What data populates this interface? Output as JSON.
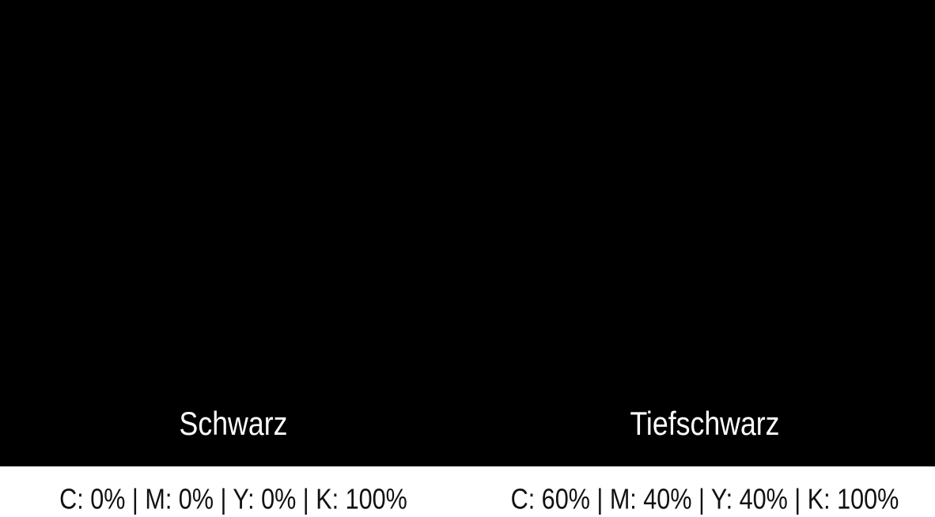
{
  "swatches": [
    {
      "name": "Schwarz",
      "label": "C: 0% | M: 0% | Y: 0% | K: 100%",
      "color": "#000000"
    },
    {
      "name": "Tiefschwarz",
      "label": "C: 60% | M: 40% | Y: 40% | K: 100%",
      "color": "#000000"
    }
  ]
}
